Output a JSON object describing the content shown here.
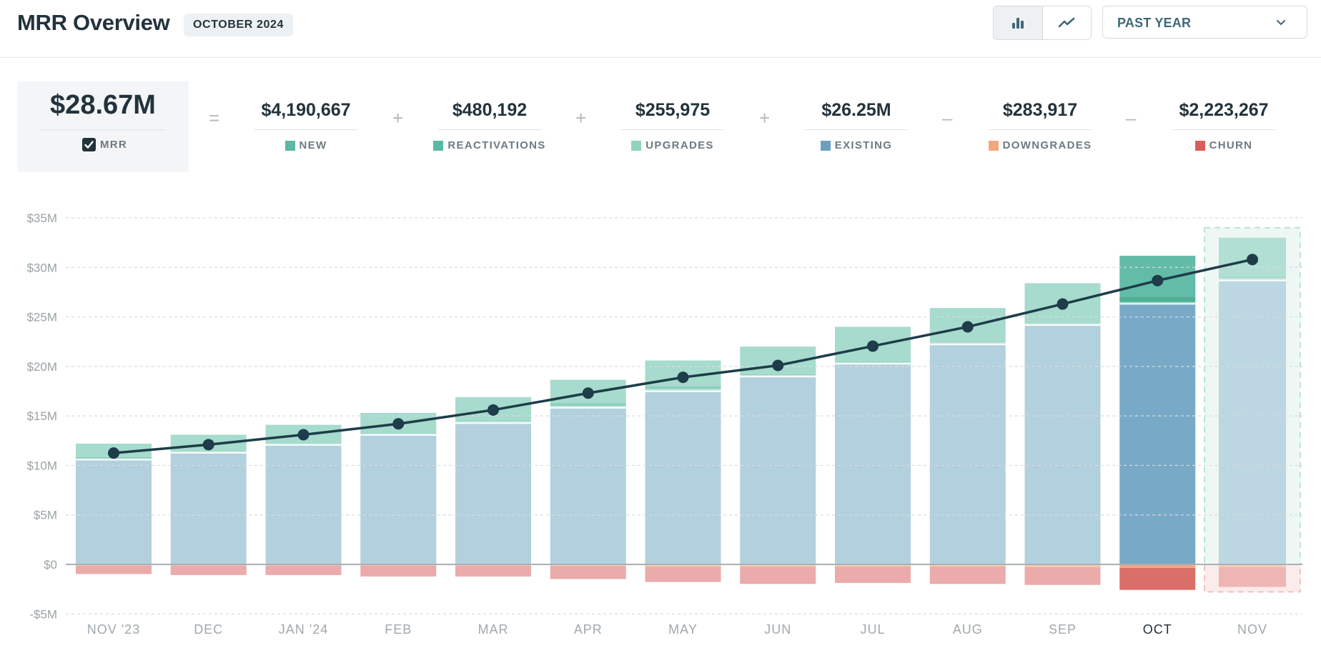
{
  "header": {
    "title": "MRR Overview",
    "period": "October 2024",
    "period_display": "OCTOBER 2024",
    "view_toggle": [
      {
        "icon": "bar-chart-icon",
        "active": true
      },
      {
        "icon": "line-chart-icon",
        "active": false
      }
    ],
    "range_select": {
      "value": "PAST YEAR",
      "icon": "chevron-down-icon"
    }
  },
  "summary": {
    "mrr": {
      "value": "$28.67M",
      "label": "MRR",
      "checked": true
    },
    "operators": [
      "=",
      "+",
      "+",
      "+",
      "–",
      "–"
    ],
    "components": [
      {
        "value": "$4,190,667",
        "label": "NEW",
        "color": "#5bb8a4"
      },
      {
        "value": "$480,192",
        "label": "REACTIVATIONS",
        "color": "#5bb8a4"
      },
      {
        "value": "$255,975",
        "label": "UPGRADES",
        "color": "#8fd5bd"
      },
      {
        "value": "$26.25M",
        "label": "EXISTING",
        "color": "#6c9fbf"
      },
      {
        "value": "$283,917",
        "label": "DOWNGRADES",
        "color": "#f3a77f"
      },
      {
        "value": "$2,223,267",
        "label": "CHURN",
        "color": "#d9605a"
      }
    ]
  },
  "chart_data": {
    "type": "bar",
    "stacked": true,
    "title": "",
    "xlabel": "",
    "ylabel": "",
    "ylim": [
      -5,
      35
    ],
    "y_unit": "$M",
    "yticks": [
      35,
      30,
      25,
      20,
      15,
      10,
      5,
      0,
      -5
    ],
    "ytick_labels": [
      "$35M",
      "$30M",
      "$25M",
      "$20M",
      "$15M",
      "$10M",
      "$5M",
      "$0",
      "-$5M"
    ],
    "grid": true,
    "categories": [
      "NOV '23",
      "DEC",
      "JAN '24",
      "FEB",
      "MAR",
      "APR",
      "MAY",
      "JUN",
      "JUL",
      "AUG",
      "SEP",
      "OCT",
      "NOV"
    ],
    "selected_category": "OCT",
    "forecast_category": "NOV",
    "series": [
      {
        "name": "Existing",
        "color": "#b3d0de",
        "selected_color": "#78aac7",
        "values": [
          10.5,
          11.2,
          12.0,
          13.0,
          14.2,
          15.75,
          17.4,
          18.9,
          20.2,
          22.15,
          24.1,
          26.25,
          28.6
        ]
      },
      {
        "name": "Upgrades",
        "color": "#c6eadd",
        "selected_color": "#8fd5bd",
        "values": [
          0.2,
          0.2,
          0.2,
          0.2,
          0.25,
          0.25,
          0.3,
          0.25,
          0.25,
          0.3,
          0.3,
          0.26,
          0.3
        ]
      },
      {
        "name": "Reactivations",
        "color": "#8fcfbc",
        "selected_color": "#4fae98",
        "values": [
          0.15,
          0.0,
          0.0,
          0.0,
          0.1,
          0.3,
          0.3,
          0.05,
          0.05,
          0.05,
          0.05,
          0.48,
          0.1
        ]
      },
      {
        "name": "New",
        "color": "#a6dbcd",
        "selected_color": "#63bca7",
        "values": [
          1.35,
          1.7,
          1.9,
          2.1,
          2.35,
          2.35,
          2.6,
          2.8,
          3.5,
          3.4,
          3.95,
          4.19,
          4.0
        ]
      },
      {
        "name": "Downgrades",
        "color": "#f6c9ad",
        "selected_color": "#f3a77f",
        "values": [
          -0.05,
          -0.05,
          -0.05,
          -0.05,
          -0.05,
          -0.1,
          -0.15,
          -0.15,
          -0.15,
          -0.15,
          -0.2,
          -0.28,
          -0.2
        ]
      },
      {
        "name": "Churn",
        "color": "#eaabaa",
        "selected_color": "#da6f69",
        "values": [
          -0.85,
          -0.95,
          -0.95,
          -1.1,
          -1.1,
          -1.3,
          -1.55,
          -1.75,
          -1.65,
          -1.75,
          -1.8,
          -2.22,
          -2.0
        ]
      }
    ],
    "line": {
      "name": "MRR",
      "color": "#1e3c49",
      "values": [
        11.25,
        12.1,
        13.1,
        14.2,
        15.6,
        17.3,
        18.9,
        20.1,
        22.05,
        24.0,
        26.3,
        28.67,
        30.8
      ]
    },
    "legend": "none"
  }
}
